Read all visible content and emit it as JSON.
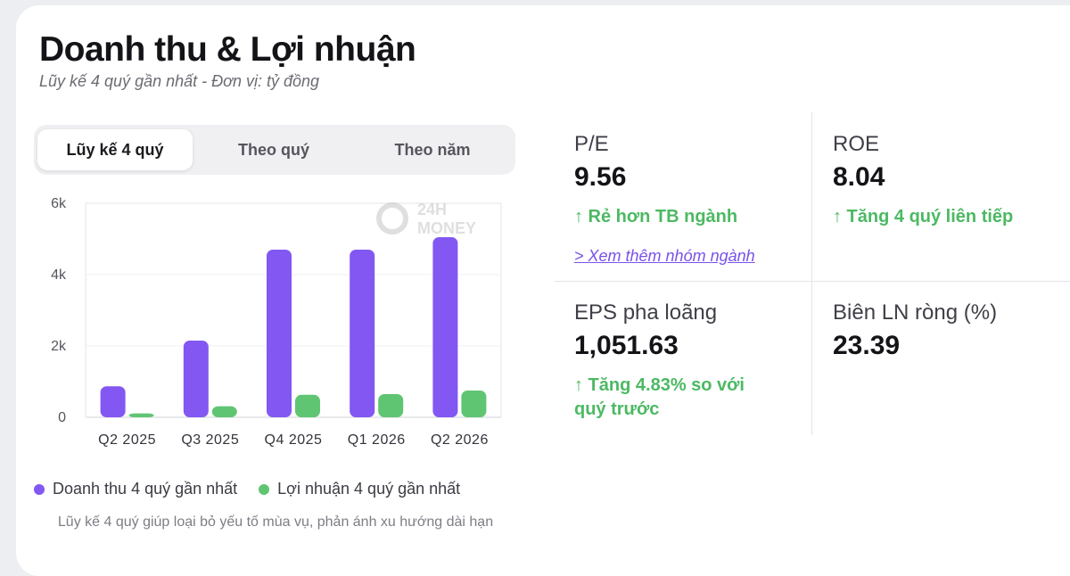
{
  "header": {
    "title": "Doanh thu & Lợi nhuận",
    "subtitle": "Lũy kế 4 quý gần nhất - Đơn vị: tỷ đồng"
  },
  "tabs": [
    {
      "label": "Lũy kế 4 quý",
      "active": true
    },
    {
      "label": "Theo quý",
      "active": false
    },
    {
      "label": "Theo năm",
      "active": false
    }
  ],
  "watermark": {
    "line1": "24H",
    "line2": "MONEY"
  },
  "chart_data": {
    "type": "bar",
    "categories": [
      "Q2 2025",
      "Q3 2025",
      "Q4 2025",
      "Q1 2026",
      "Q2 2026"
    ],
    "series": [
      {
        "name": "Doanh thu 4 quý gần nhất",
        "color": "#8257f2",
        "values": [
          870,
          2150,
          4700,
          4700,
          5050
        ]
      },
      {
        "name": "Lợi nhuận 4 quý gần nhất",
        "color": "#5fc572",
        "values": [
          110,
          310,
          630,
          650,
          750
        ]
      }
    ],
    "yticks": [
      "0",
      "2k",
      "4k",
      "6k"
    ],
    "ylim": [
      0,
      6000
    ],
    "grid": true,
    "legend": "bottom"
  },
  "legend": [
    {
      "label": "Doanh thu 4 quý gần nhất",
      "color": "#8257f2"
    },
    {
      "label": "Lợi nhuận 4 quý gần nhất",
      "color": "#5fc572"
    }
  ],
  "footnote": "Lũy kế 4 quý giúp loại bỏ yếu tố mùa vụ, phản ánh xu hướng dài hạn",
  "metrics": {
    "pe": {
      "label": "P/E",
      "value": "9.56",
      "note": "↑ Rẻ hơn TB ngành",
      "link": "> Xem thêm nhóm ngành"
    },
    "roe": {
      "label": "ROE",
      "value": "8.04",
      "note": "↑ Tăng 4 quý liên tiếp"
    },
    "eps": {
      "label": "EPS pha loãng",
      "value": "1,051.63",
      "note_line1": "↑ Tăng 4.83% so với",
      "note_line2": "quý trước"
    },
    "margin": {
      "label": "Biên LN ròng (%)",
      "value": "23.39"
    }
  },
  "colors": {
    "positive": "#4cb963",
    "link": "#7a52e8"
  }
}
